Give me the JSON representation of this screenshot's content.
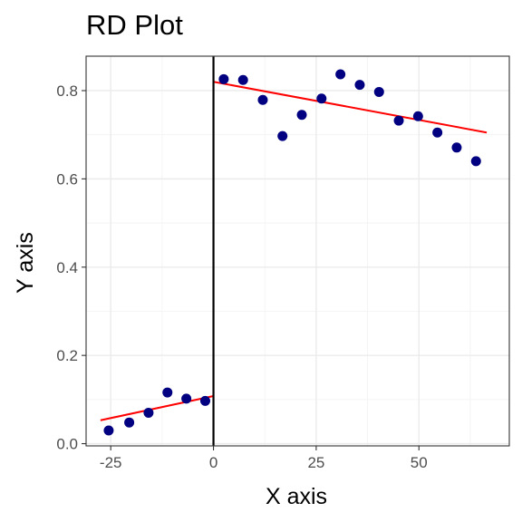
{
  "chart_data": {
    "type": "scatter",
    "title": "RD Plot",
    "xlabel": "X axis",
    "ylabel": "Y axis",
    "xlim": [
      -31,
      72
    ],
    "ylim": [
      -0.005,
      0.878
    ],
    "cutoff": 0,
    "x_ticks": [
      -25,
      0,
      25,
      50
    ],
    "x_tick_labels": [
      "-25",
      "0",
      "25",
      "50"
    ],
    "y_ticks": [
      0.0,
      0.2,
      0.4,
      0.6,
      0.8
    ],
    "y_tick_labels": [
      "0.0",
      "0.2",
      "0.4",
      "0.6",
      "0.8"
    ],
    "grid": true,
    "points": {
      "color": "#000080",
      "x": [
        -25.5,
        -20.5,
        -15.8,
        -11.2,
        -6.6,
        -2.0,
        2.5,
        7.2,
        12.0,
        16.8,
        21.5,
        26.3,
        30.9,
        35.6,
        40.3,
        45.1,
        49.8,
        54.5,
        59.2,
        63.9
      ],
      "y": [
        0.03,
        0.048,
        0.07,
        0.116,
        0.102,
        0.097,
        0.826,
        0.824,
        0.779,
        0.697,
        0.745,
        0.782,
        0.837,
        0.813,
        0.797,
        0.732,
        0.742,
        0.705,
        0.671,
        0.64
      ]
    },
    "fits": [
      {
        "color": "#ff0000",
        "x": [
          -27.5,
          0
        ],
        "y": [
          0.053,
          0.108
        ]
      },
      {
        "color": "#ff0000",
        "x": [
          0,
          66.5
        ],
        "y": [
          0.82,
          0.705
        ]
      }
    ],
    "vline": {
      "x": 0,
      "color": "#000000"
    }
  }
}
